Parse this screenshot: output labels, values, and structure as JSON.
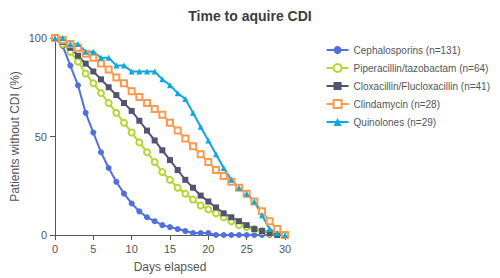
{
  "chart_data": {
    "type": "line",
    "title": "Time to aquire CDI",
    "xlabel": "Days elapsed",
    "ylabel": "Patients without CDI (%)",
    "x": [
      0,
      1,
      2,
      3,
      4,
      5,
      6,
      7,
      8,
      9,
      10,
      11,
      12,
      13,
      14,
      15,
      16,
      17,
      18,
      19,
      20,
      21,
      22,
      23,
      24,
      25,
      26,
      27,
      28,
      29,
      30
    ],
    "series": [
      {
        "name": "Cephalosporins (n=131)",
        "marker": "circle",
        "values": [
          100,
          96,
          86,
          76,
          62,
          52,
          42,
          34,
          27,
          21,
          16,
          12,
          9,
          7,
          5,
          4,
          3,
          2,
          1,
          1,
          1,
          0,
          0,
          0,
          0,
          0,
          0,
          0,
          0,
          0,
          0
        ]
      },
      {
        "name": "Piperacillin/tazobactam (n=64)",
        "marker": "emptyCircle",
        "values": [
          100,
          97,
          93,
          88,
          82,
          77,
          72,
          67,
          62,
          57,
          52,
          47,
          42,
          37,
          32,
          28,
          24,
          21,
          18,
          15,
          13,
          11,
          9,
          7,
          5,
          4,
          3,
          2,
          1,
          1,
          0
        ]
      },
      {
        "name": "Cloxacillin/Flucloxacillin (n=41)",
        "marker": "rect",
        "values": [
          100,
          98,
          95,
          91,
          87,
          83,
          79,
          75,
          71,
          67,
          63,
          58,
          53,
          48,
          43,
          38,
          33,
          28,
          24,
          20,
          17,
          14,
          11,
          9,
          7,
          5,
          3,
          2,
          1,
          0,
          0
        ]
      },
      {
        "name": "Clindamycin (n=28)",
        "marker": "emptyRect",
        "values": [
          100,
          99,
          97,
          95,
          92,
          90,
          87,
          84,
          80,
          77,
          73,
          70,
          67,
          64,
          61,
          57,
          53,
          49,
          45,
          41,
          37,
          33,
          30,
          27,
          24,
          21,
          17,
          12,
          7,
          3,
          0
        ]
      },
      {
        "name": "Quinolones (n=29)",
        "marker": "triangle",
        "values": [
          100,
          100,
          97,
          97,
          93,
          93,
          90,
          90,
          86,
          86,
          83,
          83,
          83,
          83,
          79,
          76,
          72,
          69,
          62,
          55,
          48,
          41,
          34,
          28,
          24,
          21,
          17,
          10,
          3,
          1,
          0
        ]
      }
    ],
    "xlim": [
      0,
      30
    ],
    "xticks": [
      0,
      5,
      10,
      15,
      20,
      25,
      30
    ],
    "ylim": [
      0,
      100
    ],
    "yticks": [
      0,
      50,
      100
    ],
    "grid": false,
    "legend": "right"
  }
}
